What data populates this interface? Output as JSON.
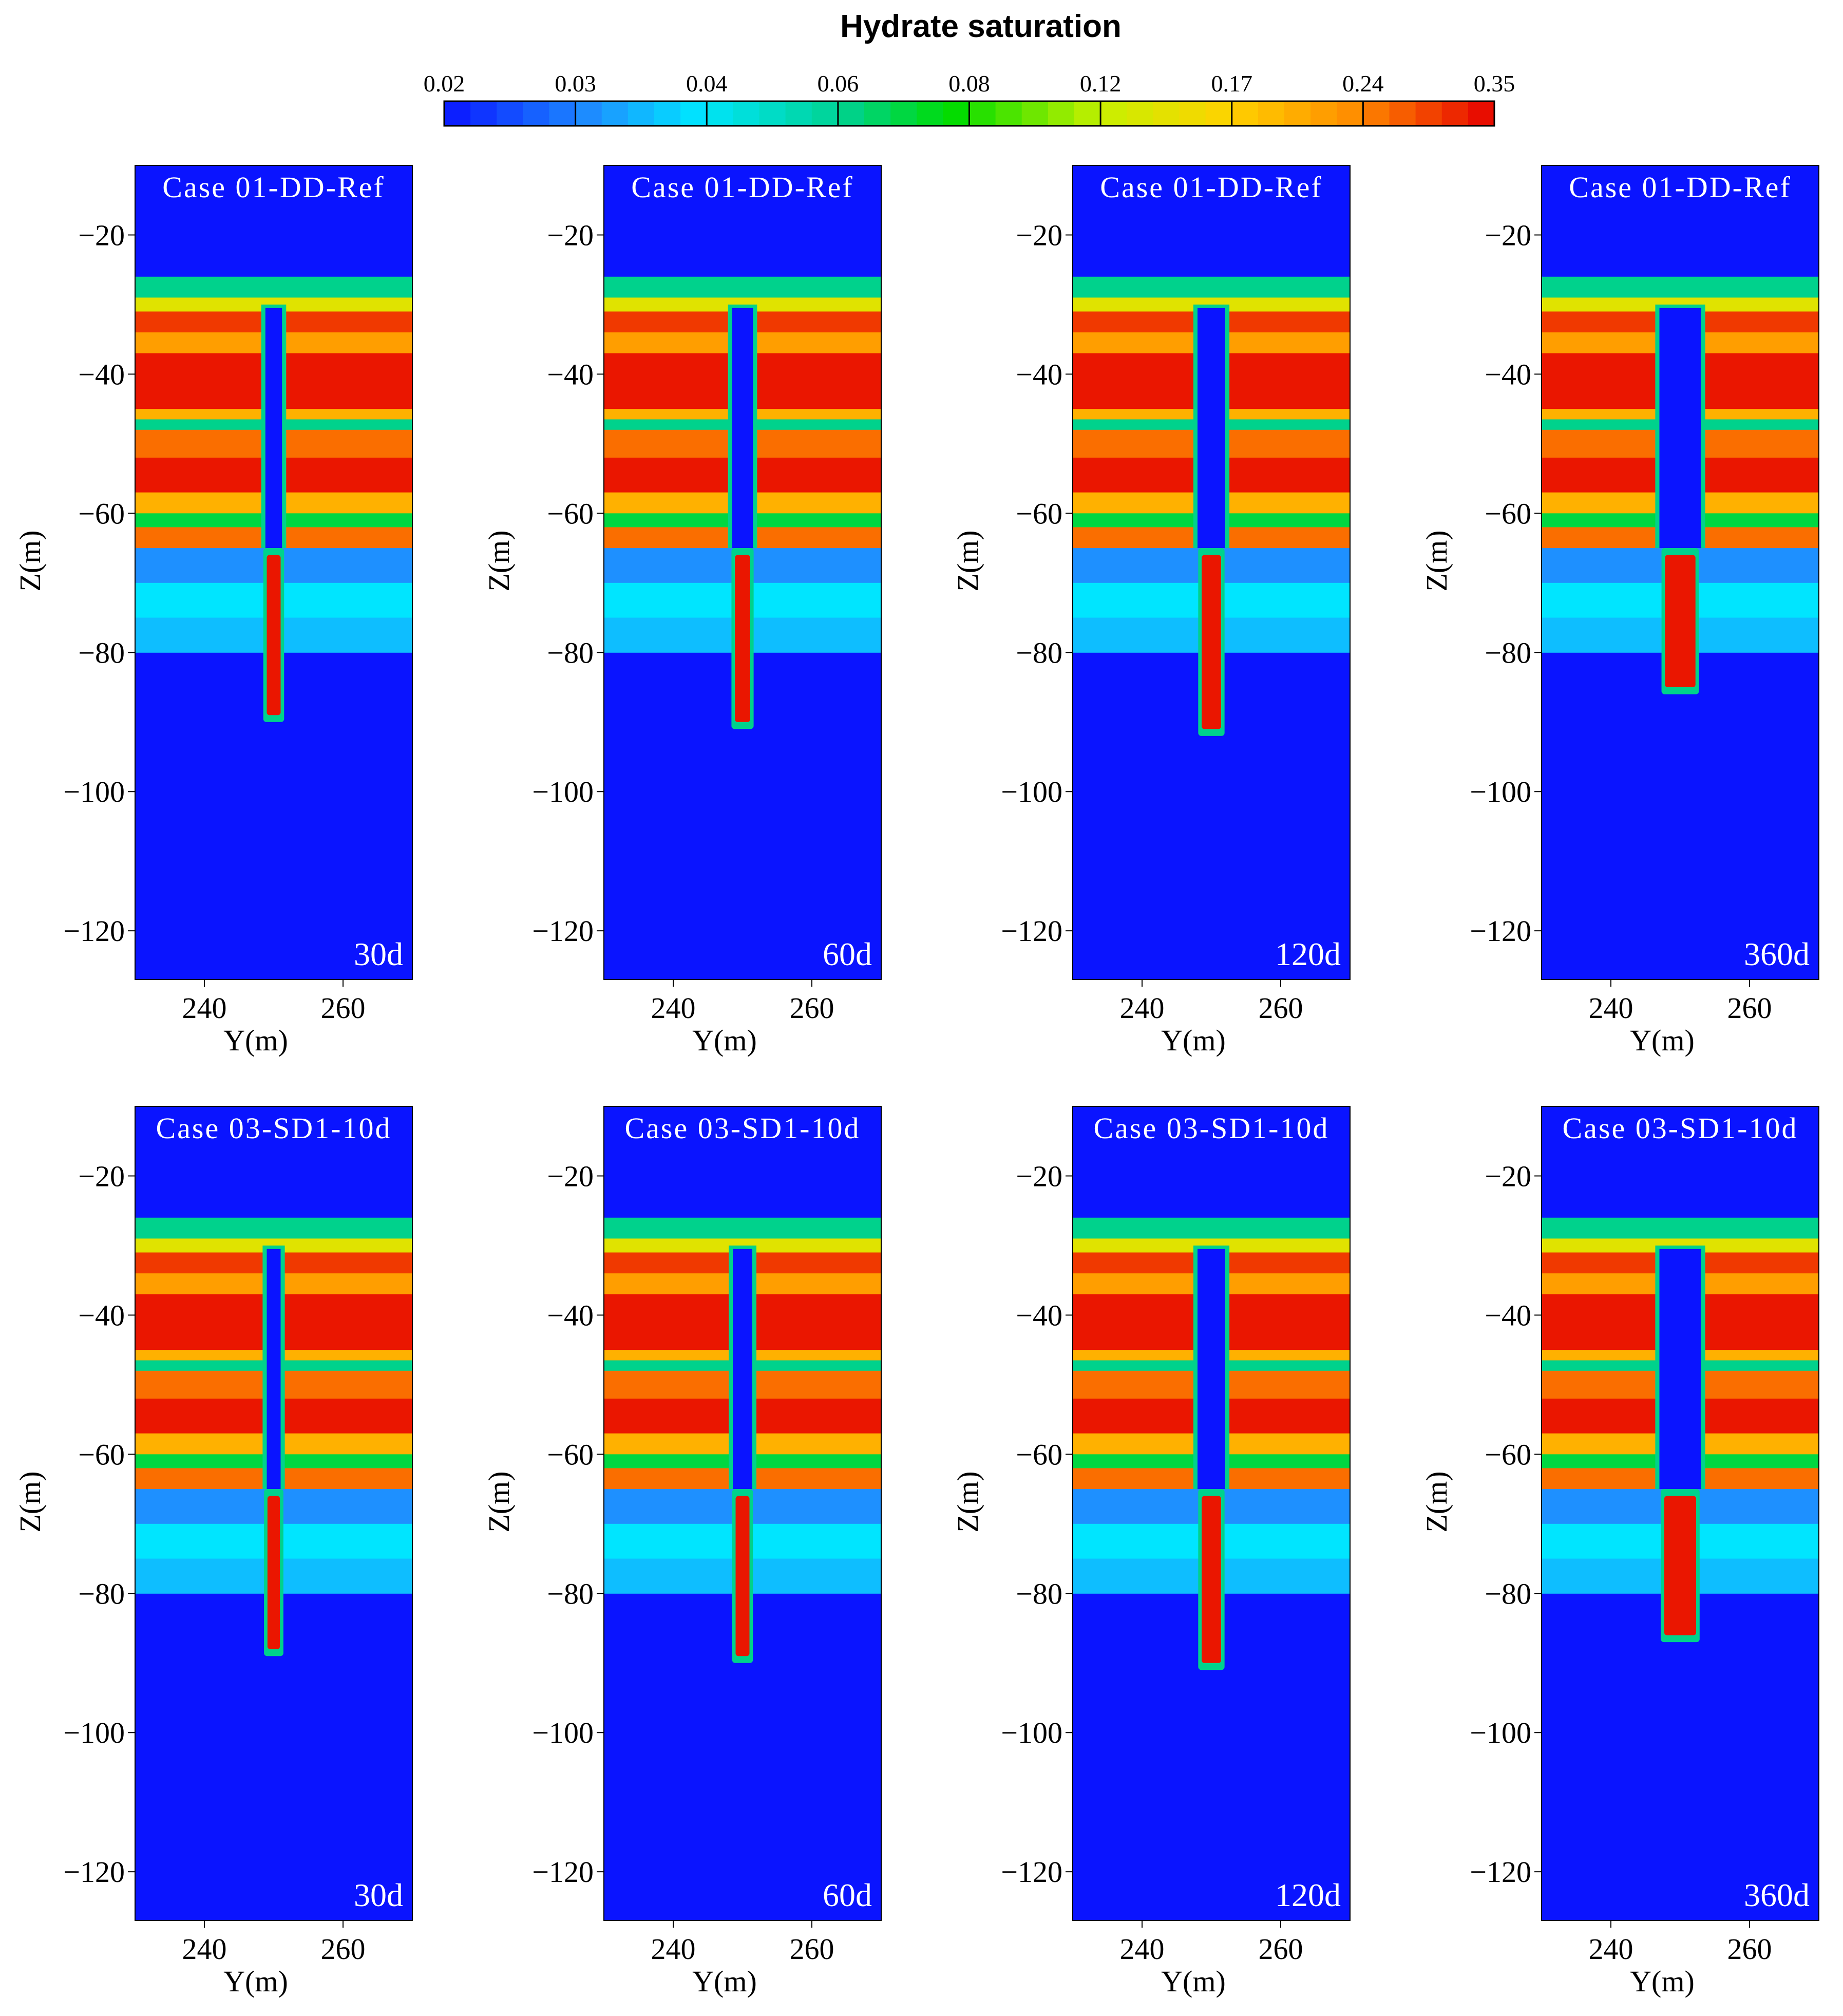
{
  "chart_data": {
    "type": "heatmap",
    "title": "Hydrate saturation",
    "colorbar": {
      "label": "Hydrate saturation",
      "ticks": [
        "0.02",
        "0.03",
        "0.04",
        "0.06",
        "0.08",
        "0.12",
        "0.17",
        "0.24",
        "0.35"
      ],
      "tick_values": [
        0.02,
        0.03,
        0.04,
        0.06,
        0.08,
        0.12,
        0.17,
        0.24,
        0.35
      ],
      "scale": "log",
      "colors": [
        "#0a14ff",
        "#1e90ff",
        "#00e5ff",
        "#00d28c",
        "#00dc00",
        "#c8f000",
        "#ffd200",
        "#ff8c00",
        "#e60000"
      ]
    },
    "xlabel": "Y(m)",
    "ylabel": "Z(m)",
    "xlim": [
      230,
      270
    ],
    "ylim": [
      -127,
      -10
    ],
    "xticks": [
      240,
      260
    ],
    "xtick_labels": [
      "240",
      "260"
    ],
    "yticks": [
      -20,
      -40,
      -60,
      -80,
      -100,
      -120
    ],
    "ytick_labels": [
      "−20",
      "−40",
      "−60",
      "−80",
      "−100",
      "−120"
    ],
    "well_y": 250,
    "background_saturation": 0.02,
    "layers": [
      {
        "z_top": -26,
        "z_bottom": -29,
        "saturation": 0.06
      },
      {
        "z_top": -29,
        "z_bottom": -31,
        "saturation": 0.14
      },
      {
        "z_top": -31,
        "z_bottom": -34,
        "saturation": 0.3
      },
      {
        "z_top": -34,
        "z_bottom": -37,
        "saturation": 0.22
      },
      {
        "z_top": -37,
        "z_bottom": -45,
        "saturation": 0.33
      },
      {
        "z_top": -45,
        "z_bottom": -46.5,
        "saturation": 0.2
      },
      {
        "z_top": -46.5,
        "z_bottom": -48,
        "saturation": 0.06
      },
      {
        "z_top": -48,
        "z_bottom": -52,
        "saturation": 0.26
      },
      {
        "z_top": -52,
        "z_bottom": -57,
        "saturation": 0.33
      },
      {
        "z_top": -57,
        "z_bottom": -60,
        "saturation": 0.2
      },
      {
        "z_top": -60,
        "z_bottom": -62,
        "saturation": 0.07
      },
      {
        "z_top": -62,
        "z_bottom": -65,
        "saturation": 0.26
      },
      {
        "z_top": -65,
        "z_bottom": -70,
        "saturation": 0.03
      },
      {
        "z_top": -70,
        "z_bottom": -75,
        "saturation": 0.04
      },
      {
        "z_top": -75,
        "z_bottom": -80,
        "saturation": 0.035
      }
    ],
    "panels": [
      {
        "case": "Case 01-DD-Ref",
        "time": "30d",
        "dissociation_halfwidth": 1.2,
        "plume_bottom": -90,
        "plume_halfwidth": 1.0
      },
      {
        "case": "Case 01-DD-Ref",
        "time": "60d",
        "dissociation_halfwidth": 1.5,
        "plume_bottom": -91,
        "plume_halfwidth": 1.1
      },
      {
        "case": "Case 01-DD-Ref",
        "time": "120d",
        "dissociation_halfwidth": 2.0,
        "plume_bottom": -92,
        "plume_halfwidth": 1.4
      },
      {
        "case": "Case 01-DD-Ref",
        "time": "360d",
        "dissociation_halfwidth": 3.0,
        "plume_bottom": -86,
        "plume_halfwidth": 2.2
      },
      {
        "case": "Case 03-SD1-10d",
        "time": "30d",
        "dissociation_halfwidth": 1.0,
        "plume_bottom": -89,
        "plume_halfwidth": 0.9
      },
      {
        "case": "Case 03-SD1-10d",
        "time": "60d",
        "dissociation_halfwidth": 1.4,
        "plume_bottom": -90,
        "plume_halfwidth": 1.0
      },
      {
        "case": "Case 03-SD1-10d",
        "time": "120d",
        "dissociation_halfwidth": 2.0,
        "plume_bottom": -91,
        "plume_halfwidth": 1.4
      },
      {
        "case": "Case 03-SD1-10d",
        "time": "360d",
        "dissociation_halfwidth": 3.0,
        "plume_bottom": -87,
        "plume_halfwidth": 2.3
      }
    ]
  }
}
